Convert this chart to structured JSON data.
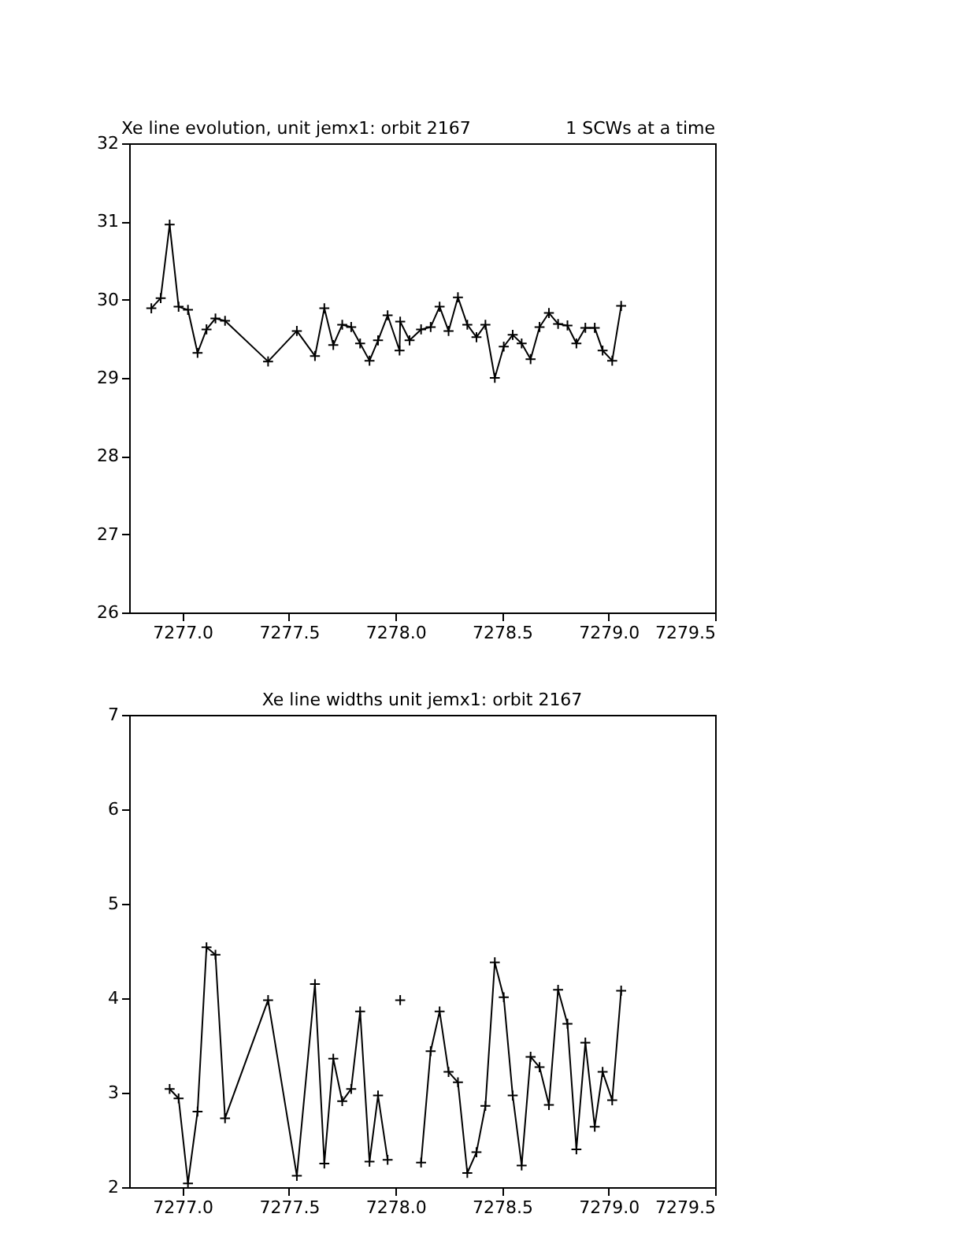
{
  "chart_data": [
    {
      "type": "line",
      "title": "Xe line evolution, unit jemx1: orbit 2167",
      "annotations": [
        "1 SCWs at a time"
      ],
      "marker": "cross",
      "line_style": "solid",
      "grid": false,
      "x": [
        7276.854,
        7276.898,
        7276.94,
        7276.982,
        7277.026,
        7277.071,
        7277.113,
        7277.155,
        7277.2,
        7277.402,
        7277.537,
        7277.622,
        7277.666,
        7277.708,
        7277.75,
        7277.792,
        7277.834,
        7277.878,
        7277.918,
        7277.963,
        7278.019,
        7278.022,
        7278.066,
        7278.12,
        7278.165,
        7278.207,
        7278.249,
        7278.293,
        7278.337,
        7278.38,
        7278.422,
        7278.466,
        7278.508,
        7278.55,
        7278.592,
        7278.634,
        7278.676,
        7278.72,
        7278.763,
        7278.807,
        7278.849,
        7278.891,
        7278.935,
        7278.972,
        7279.017,
        7279.059
      ],
      "series": [
        {
          "color": "#000000",
          "values": [
            29.89,
            30.02,
            30.96,
            29.91,
            29.87,
            29.32,
            29.62,
            29.76,
            29.73,
            29.21,
            29.6,
            29.28,
            29.89,
            29.42,
            29.68,
            29.65,
            29.44,
            29.22,
            29.48,
            29.8,
            29.35,
            29.72,
            29.48,
            29.62,
            29.65,
            29.91,
            29.6,
            30.03,
            29.68,
            29.52,
            29.68,
            29.0,
            29.4,
            29.55,
            29.44,
            29.24,
            29.65,
            29.83,
            29.69,
            29.67,
            29.44,
            29.64,
            29.64,
            29.35,
            29.22,
            29.92
          ]
        }
      ],
      "xlim": [
        7276.75,
        7279.5
      ],
      "xticks": [
        {
          "value": 7277.0,
          "label": "7277.0"
        },
        {
          "value": 7277.5,
          "label": "7277.5"
        },
        {
          "value": 7278.0,
          "label": "7278.0"
        },
        {
          "value": 7278.5,
          "label": "7278.5"
        },
        {
          "value": 7279.0,
          "label": "7279.0"
        },
        {
          "value": 7279.5,
          "label": "7279.5"
        }
      ],
      "ylim": [
        26,
        32
      ],
      "yticks": [
        26,
        27,
        28,
        29,
        30,
        31,
        32
      ]
    },
    {
      "type": "line",
      "title": "Xe line widths unit jemx1: orbit 2167",
      "marker": "cross",
      "line_style": "solid",
      "grid": false,
      "series": [
        {
          "color": "#000000",
          "x": [
            7276.94,
            7276.982,
            7277.026,
            7277.071,
            7277.113,
            7277.155,
            7277.2,
            7277.402,
            7277.537,
            7277.622,
            7277.666,
            7277.708,
            7277.75,
            7277.792,
            7277.834,
            7277.878,
            7277.918,
            7277.963,
            7278.019,
            7278.022,
            7278.066,
            7278.12,
            7278.165,
            7278.207,
            7278.249,
            7278.293,
            7278.337,
            7278.38,
            7278.422,
            7278.466,
            7278.508,
            7278.55,
            7278.592,
            7278.634,
            7278.676,
            7278.72,
            7278.763,
            7278.807,
            7278.849,
            7278.891,
            7278.935,
            7278.972,
            7279.017,
            7279.059
          ],
          "values": [
            3.04,
            2.94,
            2.04,
            2.8,
            4.54,
            4.46,
            2.73,
            3.98,
            2.12,
            4.15,
            2.25,
            3.36,
            2.91,
            3.04,
            3.86,
            2.27,
            2.97,
            2.29,
            null,
            3.98,
            null,
            2.26,
            3.44,
            3.86,
            3.22,
            3.11,
            2.15,
            2.37,
            2.86,
            4.38,
            4.01,
            2.97,
            2.23,
            3.38,
            3.27,
            2.87,
            4.09,
            3.73,
            2.4,
            3.53,
            2.64,
            3.22,
            2.92,
            4.08
          ]
        }
      ],
      "xlim": [
        7276.75,
        7279.5
      ],
      "xticks": [
        {
          "value": 7277.0,
          "label": "7277.0"
        },
        {
          "value": 7277.5,
          "label": "7277.5"
        },
        {
          "value": 7278.0,
          "label": "7278.0"
        },
        {
          "value": 7278.5,
          "label": "7278.5"
        },
        {
          "value": 7279.0,
          "label": "7279.0"
        },
        {
          "value": 7279.5,
          "label": "7279.5"
        }
      ],
      "ylim": [
        2,
        7
      ],
      "yticks": [
        2,
        3,
        4,
        5,
        6,
        7
      ]
    }
  ]
}
